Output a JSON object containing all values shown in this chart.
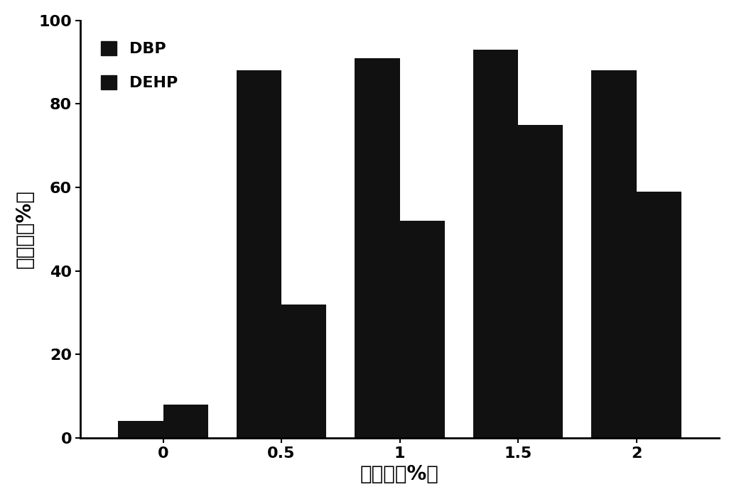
{
  "categories": [
    "0",
    "0.5",
    "1",
    "1.5",
    "2"
  ],
  "dbp_values": [
    4,
    88,
    91,
    93,
    88
  ],
  "dehp_values": [
    8,
    32,
    52,
    75,
    59
  ],
  "bar_color": "#111111",
  "xlabel": "接种量（%）",
  "ylabel": "降解率（%）",
  "ylim": [
    0,
    100
  ],
  "yticks": [
    0,
    20,
    40,
    60,
    80,
    100
  ],
  "legend_labels": [
    "DBP",
    "DEHP"
  ],
  "bar_width": 0.38,
  "xlabel_fontsize": 20,
  "ylabel_fontsize": 20,
  "tick_fontsize": 16,
  "legend_fontsize": 16
}
